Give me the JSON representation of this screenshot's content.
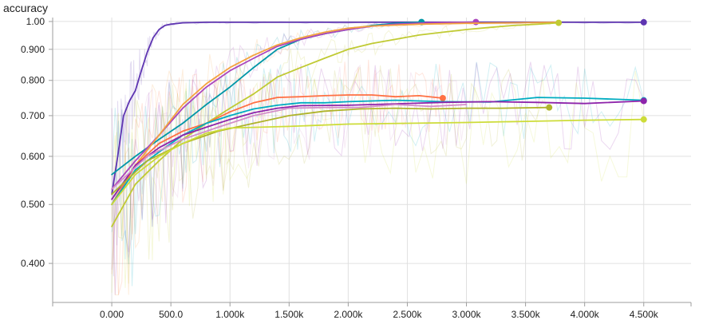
{
  "chart_data": {
    "type": "line",
    "title": "accuracy",
    "xlabel": "",
    "ylabel": "",
    "xlim": [
      -500,
      4900
    ],
    "ylim": [
      0.345,
      1.015
    ],
    "y_scale": "log",
    "grid": true,
    "x_ticks": [
      {
        "value": 0,
        "label": "0.000"
      },
      {
        "value": 500,
        "label": "500.0"
      },
      {
        "value": 1000,
        "label": "1.000k"
      },
      {
        "value": 1500,
        "label": "1.500k"
      },
      {
        "value": 2000,
        "label": "2.000k"
      },
      {
        "value": 2500,
        "label": "2.500k"
      },
      {
        "value": 3000,
        "label": "3.000k"
      },
      {
        "value": 3500,
        "label": "3.500k"
      },
      {
        "value": 4000,
        "label": "4.000k"
      },
      {
        "value": 4500,
        "label": "4.500k"
      }
    ],
    "y_ticks": [
      {
        "value": 0.4,
        "label": "0.400"
      },
      {
        "value": 0.5,
        "label": "0.500"
      },
      {
        "value": 0.6,
        "label": "0.600"
      },
      {
        "value": 0.7,
        "label": "0.700"
      },
      {
        "value": 0.8,
        "label": "0.800"
      },
      {
        "value": 0.9,
        "label": "0.900"
      },
      {
        "value": 1.0,
        "label": "1.00"
      }
    ],
    "series": [
      {
        "color": "#5e35b1",
        "end_marker": true,
        "x": [
          0,
          50,
          100,
          150,
          200,
          250,
          300,
          350,
          400,
          450,
          500,
          600,
          800,
          1000,
          1500,
          2000,
          3000,
          4000,
          4500
        ],
        "y": [
          0.52,
          0.6,
          0.7,
          0.74,
          0.77,
          0.83,
          0.89,
          0.94,
          0.97,
          0.985,
          0.99,
          0.995,
          0.997,
          0.997,
          0.997,
          0.997,
          0.997,
          0.997,
          0.997
        ]
      },
      {
        "color": "#0097a7",
        "end_marker": true,
        "x": [
          0,
          200,
          400,
          600,
          800,
          1000,
          1200,
          1400,
          1600,
          1800,
          2000,
          2200,
          2400,
          2620
        ],
        "y": [
          0.56,
          0.6,
          0.64,
          0.68,
          0.73,
          0.78,
          0.84,
          0.9,
          0.935,
          0.955,
          0.97,
          0.985,
          0.993,
          0.998
        ]
      },
      {
        "color": "#ab47bc",
        "end_marker": true,
        "x": [
          0,
          200,
          400,
          600,
          800,
          1000,
          1200,
          1400,
          1600,
          1800,
          2000,
          2200,
          2400,
          2600,
          2800,
          3080
        ],
        "y": [
          0.53,
          0.59,
          0.65,
          0.72,
          0.78,
          0.83,
          0.87,
          0.91,
          0.935,
          0.955,
          0.97,
          0.982,
          0.99,
          0.994,
          0.996,
          0.998
        ]
      },
      {
        "color": "#f4a340",
        "end_marker": false,
        "x": [
          0,
          200,
          400,
          600,
          800,
          1000,
          1200,
          1400,
          1600,
          1800,
          2000,
          2200,
          2600,
          3000,
          3400,
          3780
        ],
        "y": [
          0.5,
          0.58,
          0.65,
          0.73,
          0.79,
          0.84,
          0.88,
          0.915,
          0.94,
          0.96,
          0.975,
          0.983,
          0.99,
          0.993,
          0.995,
          0.997
        ]
      },
      {
        "color": "#c0ca33",
        "end_marker": true,
        "x": [
          0,
          200,
          400,
          600,
          800,
          1000,
          1200,
          1400,
          1600,
          1800,
          2000,
          2200,
          2400,
          2600,
          2800,
          3000,
          3200,
          3400,
          3600,
          3780
        ],
        "y": [
          0.46,
          0.54,
          0.59,
          0.64,
          0.68,
          0.72,
          0.76,
          0.81,
          0.84,
          0.87,
          0.9,
          0.92,
          0.935,
          0.95,
          0.96,
          0.97,
          0.978,
          0.985,
          0.99,
          0.995
        ]
      },
      {
        "color": "#ff7043",
        "end_marker": true,
        "x": [
          0,
          200,
          400,
          600,
          800,
          1000,
          1200,
          1400,
          1600,
          1800,
          2000,
          2200,
          2400,
          2600,
          2800
        ],
        "y": [
          0.5,
          0.58,
          0.63,
          0.66,
          0.68,
          0.71,
          0.735,
          0.75,
          0.752,
          0.755,
          0.757,
          0.757,
          0.752,
          0.755,
          0.748
        ]
      },
      {
        "color": "#00acc1",
        "end_marker": true,
        "x": [
          0,
          200,
          400,
          600,
          800,
          1000,
          1200,
          1400,
          1600,
          1800,
          2000,
          2400,
          2800,
          3200,
          3600,
          4000,
          4500
        ],
        "y": [
          0.5,
          0.57,
          0.61,
          0.65,
          0.68,
          0.7,
          0.718,
          0.728,
          0.735,
          0.735,
          0.738,
          0.742,
          0.738,
          0.737,
          0.75,
          0.748,
          0.742
        ]
      },
      {
        "color": "#8e24aa",
        "end_marker": true,
        "x": [
          0,
          200,
          400,
          600,
          800,
          1000,
          1200,
          1400,
          1600,
          2000,
          2400,
          2800,
          3200,
          3600,
          4000,
          4500
        ],
        "y": [
          0.51,
          0.58,
          0.62,
          0.65,
          0.67,
          0.69,
          0.708,
          0.72,
          0.727,
          0.728,
          0.732,
          0.736,
          0.738,
          0.736,
          0.733,
          0.74
        ]
      },
      {
        "color": "#d48fc9",
        "end_marker": false,
        "x": [
          0,
          300,
          600,
          900,
          1200,
          1500,
          1800,
          2100,
          2400,
          2700,
          3000
        ],
        "y": [
          0.53,
          0.6,
          0.64,
          0.67,
          0.7,
          0.72,
          0.722,
          0.722,
          0.73,
          0.725,
          0.73
        ]
      },
      {
        "color": "#afb42b",
        "end_marker": true,
        "x": [
          0,
          300,
          600,
          900,
          1200,
          1500,
          1800,
          2100,
          2400,
          2700,
          3000,
          3300,
          3700
        ],
        "y": [
          0.52,
          0.59,
          0.63,
          0.66,
          0.68,
          0.7,
          0.712,
          0.718,
          0.72,
          0.718,
          0.72,
          0.72,
          0.722
        ]
      },
      {
        "color": "#cddc39",
        "end_marker": true,
        "x": [
          0,
          200,
          400,
          600,
          800,
          1000,
          1500,
          2000,
          2500,
          3000,
          3500,
          4000,
          4500
        ],
        "y": [
          0.5,
          0.56,
          0.6,
          0.63,
          0.655,
          0.668,
          0.672,
          0.678,
          0.68,
          0.682,
          0.685,
          0.688,
          0.69
        ]
      }
    ]
  }
}
